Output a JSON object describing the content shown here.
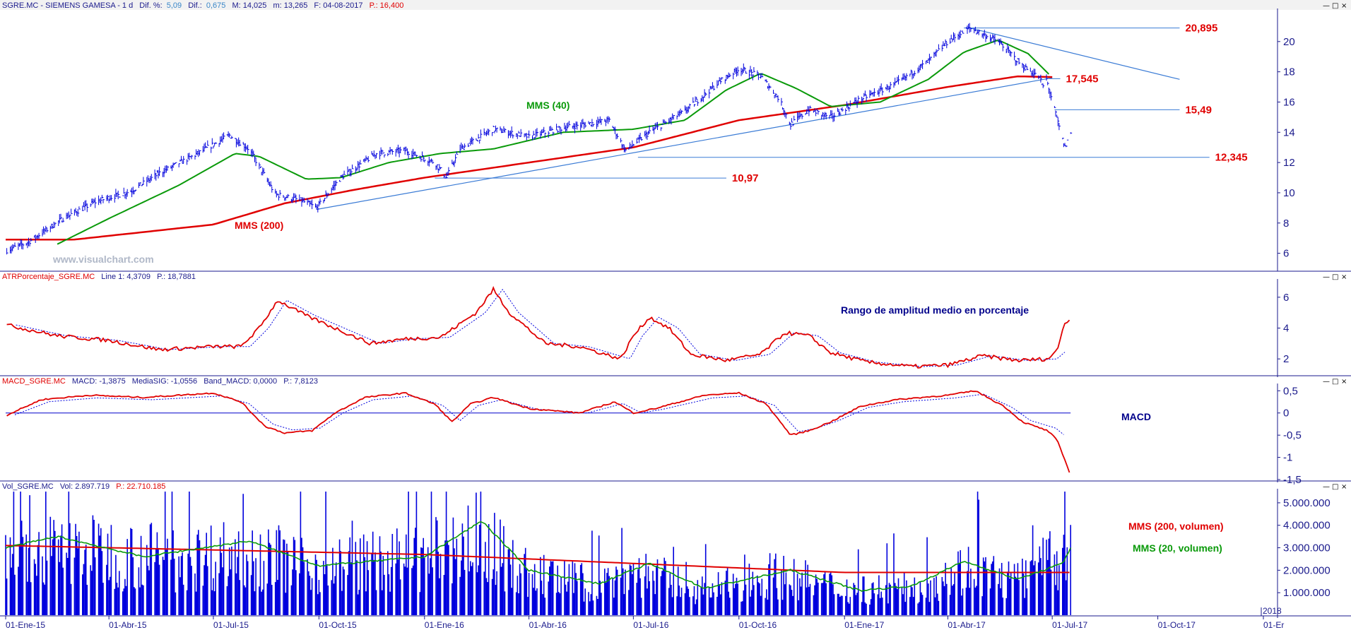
{
  "colors": {
    "price": "#0000dd",
    "mms40": "#0a9a0a",
    "mms200": "#e00000",
    "trend": "#3a7bd5",
    "header_text": "#1a1a8c",
    "header_value": "#3a87c8",
    "header_accent": "#e00000",
    "axis_text": "#1a1a8c",
    "volume_bar": "#0000dd",
    "annotation_blue": "#00008b",
    "watermark": "#b0b8c8"
  },
  "panels": {
    "price": {
      "header": {
        "title": "SGRE.MC - SIEMENS GAMESA - 1 d",
        "dif_pct_label": "Dif. %:",
        "dif_pct_value": "5,09",
        "dif_label": "Dif.:",
        "dif_value": "0,675",
        "max": "M: 14,025",
        "min": "m: 13,265",
        "date": "F: 04-08-2017",
        "price": "P.: 16,400"
      },
      "y_ticks": [
        "6",
        "8",
        "10",
        "12",
        "14",
        "16",
        "18",
        "20"
      ],
      "labels": {
        "mms40": "MMS (40)",
        "mms200": "MMS (200)",
        "watermark": "www.visualchart.com"
      },
      "levels": [
        "20,895",
        "17,545",
        "15,49",
        "12,345",
        "10,97"
      ]
    },
    "atr": {
      "header": {
        "name": "ATRPorcentaje_SGRE.MC",
        "line": "Line 1: 4,3709",
        "price": "P.: 18,7881"
      },
      "y_ticks": [
        "2",
        "4",
        "6"
      ],
      "annotation": "Rango de amplitud medio en porcentaje"
    },
    "macd": {
      "header": {
        "name": "MACD_SGRE.MC",
        "macd": "MACD: -1,3875",
        "signal": "MediaSIG: -1,0556",
        "band": "Band_MACD: 0,0000",
        "price": "P.: 7,8123"
      },
      "y_ticks": [
        "0,5",
        "0",
        "-0,5",
        "-1",
        "-1,5"
      ],
      "annotation": "MACD"
    },
    "volume": {
      "header": {
        "name": "Vol_SGRE.MC",
        "vol": "Vol: 2.897.719",
        "price": "P.: 22.710.185"
      },
      "y_ticks": [
        "1.000.000",
        "2.000.000",
        "3.000.000",
        "4.000.000",
        "5.000.000"
      ],
      "labels": {
        "mms200": "MMS (200, volumen)",
        "mms20": "MMS (20, volumen)"
      }
    }
  },
  "x_axis": {
    "ticks": [
      "01-Ene-15",
      "01-Abr-15",
      "01-Jul-15",
      "01-Oct-15",
      "01-Ene-16",
      "01-Abr-16",
      "01-Jul-16",
      "01-Oct-16",
      "01-Ene-17",
      "01-Abr-17",
      "01-Jul-17",
      "01-Oct-17",
      "01-Er"
    ],
    "year_marker": "2018"
  },
  "window_controls": {
    "minimize": "—",
    "maximize": "□",
    "close": "×"
  },
  "chart_data": {
    "type": "line",
    "title": "SGRE.MC - SIEMENS GAMESA - 1 d",
    "x_range": [
      "2015-01-01",
      "2018-01-01"
    ],
    "price_anchors": [
      [
        "2015-01-02",
        6.2
      ],
      [
        "2015-01-20",
        6.7
      ],
      [
        "2015-02-20",
        8.3
      ],
      [
        "2015-03-20",
        9.4
      ],
      [
        "2015-04-20",
        10.1
      ],
      [
        "2015-05-15",
        11.3
      ],
      [
        "2015-06-15",
        12.5
      ],
      [
        "2015-07-15",
        13.8
      ],
      [
        "2015-08-01",
        12.9
      ],
      [
        "2015-08-24",
        9.9
      ],
      [
        "2015-09-15",
        9.5
      ],
      [
        "2015-09-29",
        9.0
      ],
      [
        "2015-10-20",
        11.0
      ],
      [
        "2015-11-20",
        12.6
      ],
      [
        "2015-12-15",
        12.8
      ],
      [
        "2016-01-10",
        12.0
      ],
      [
        "2016-01-20",
        11.0
      ],
      [
        "2016-02-01",
        12.9
      ],
      [
        "2016-03-01",
        14.2
      ],
      [
        "2016-04-01",
        13.7
      ],
      [
        "2016-05-01",
        14.3
      ],
      [
        "2016-06-10",
        14.8
      ],
      [
        "2016-06-24",
        12.8
      ],
      [
        "2016-07-15",
        14.0
      ],
      [
        "2016-08-15",
        15.4
      ],
      [
        "2016-09-15",
        17.4
      ],
      [
        "2016-10-01",
        18.2
      ],
      [
        "2016-10-20",
        17.7
      ],
      [
        "2016-11-05",
        16.2
      ],
      [
        "2016-11-15",
        14.5
      ],
      [
        "2016-12-01",
        15.5
      ],
      [
        "2016-12-20",
        15.0
      ],
      [
        "2017-01-15",
        16.2
      ],
      [
        "2017-02-15",
        17.2
      ],
      [
        "2017-03-15",
        18.7
      ],
      [
        "2017-04-01",
        20.0
      ],
      [
        "2017-04-20",
        20.895
      ],
      [
        "2017-05-15",
        20.0
      ],
      [
        "2017-06-05",
        18.4
      ],
      [
        "2017-06-20",
        17.6
      ],
      [
        "2017-06-23",
        17.0
      ],
      [
        "2017-06-26",
        17.5
      ],
      [
        "2017-07-03",
        15.49
      ],
      [
        "2017-07-10",
        13.5
      ],
      [
        "2017-07-12",
        13.0
      ],
      [
        "2017-07-17",
        14.0
      ]
    ],
    "mms40_anchors": [
      [
        "2015-02-15",
        6.6
      ],
      [
        "2015-04-01",
        8.3
      ],
      [
        "2015-06-01",
        10.5
      ],
      [
        "2015-07-20",
        12.6
      ],
      [
        "2015-08-10",
        12.4
      ],
      [
        "2015-09-20",
        10.9
      ],
      [
        "2015-10-20",
        11.0
      ],
      [
        "2015-12-01",
        12.0
      ],
      [
        "2016-01-15",
        12.6
      ],
      [
        "2016-03-01",
        12.9
      ],
      [
        "2016-05-01",
        14.0
      ],
      [
        "2016-07-01",
        14.2
      ],
      [
        "2016-08-15",
        14.8
      ],
      [
        "2016-09-20",
        16.8
      ],
      [
        "2016-10-20",
        17.9
      ],
      [
        "2016-11-20",
        16.9
      ],
      [
        "2016-12-20",
        15.7
      ],
      [
        "2017-02-01",
        16.0
      ],
      [
        "2017-03-15",
        17.5
      ],
      [
        "2017-04-15",
        19.3
      ],
      [
        "2017-05-15",
        20.1
      ],
      [
        "2017-06-10",
        19.2
      ],
      [
        "2017-06-30",
        17.7
      ]
    ],
    "mms200_anchors": [
      [
        "2015-01-01",
        6.9
      ],
      [
        "2015-03-01",
        6.9
      ],
      [
        "2015-07-01",
        7.9
      ],
      [
        "2015-09-01",
        9.3
      ],
      [
        "2015-11-01",
        10.2
      ],
      [
        "2016-01-01",
        11.0
      ],
      [
        "2016-04-01",
        12.0
      ],
      [
        "2016-07-01",
        13.0
      ],
      [
        "2016-10-01",
        14.8
      ],
      [
        "2017-01-01",
        15.8
      ],
      [
        "2017-04-01",
        17.0
      ],
      [
        "2017-06-01",
        17.7
      ],
      [
        "2017-07-01",
        17.65
      ]
    ],
    "price_ylim": [
      5,
      22
    ],
    "levels": [
      {
        "label": "20,895",
        "value": 20.895,
        "from": "2017-04-15",
        "to": "2017-10-20"
      },
      {
        "label": "17,545",
        "value": 17.545,
        "from": "2017-06-27",
        "to": "2017-07-08"
      },
      {
        "label": "15,49",
        "value": 15.49,
        "from": "2017-07-03",
        "to": "2017-10-20"
      },
      {
        "label": "12,345",
        "value": 12.345,
        "from": "2016-07-05",
        "to": "2017-11-15"
      },
      {
        "label": "10,97",
        "value": 10.97,
        "from": "2016-01-10",
        "to": "2016-09-20"
      }
    ],
    "trend_lines": [
      [
        [
          "2015-09-29",
          8.9
        ],
        [
          "2017-07-01",
          17.6
        ]
      ],
      [
        [
          "2017-04-20",
          20.9
        ],
        [
          "2017-10-20",
          17.5
        ]
      ]
    ],
    "atr_anchors": [
      [
        "2015-01-02",
        4.2
      ],
      [
        "2015-02-15",
        3.5
      ],
      [
        "2015-04-01",
        3.2
      ],
      [
        "2015-05-15",
        2.6
      ],
      [
        "2015-07-01",
        2.8
      ],
      [
        "2015-07-25",
        2.8
      ],
      [
        "2015-08-10",
        4.0
      ],
      [
        "2015-08-26",
        5.8
      ],
      [
        "2015-09-20",
        4.8
      ],
      [
        "2015-10-15",
        4.0
      ],
      [
        "2015-11-15",
        3.0
      ],
      [
        "2015-12-15",
        3.3
      ],
      [
        "2016-01-15",
        3.4
      ],
      [
        "2016-02-15",
        5.0
      ],
      [
        "2016-03-01",
        6.5
      ],
      [
        "2016-03-15",
        5.0
      ],
      [
        "2016-04-15",
        3.0
      ],
      [
        "2016-05-15",
        2.8
      ],
      [
        "2016-06-20",
        2.0
      ],
      [
        "2016-07-01",
        3.5
      ],
      [
        "2016-07-15",
        4.7
      ],
      [
        "2016-08-01",
        4.0
      ],
      [
        "2016-08-20",
        2.3
      ],
      [
        "2016-09-20",
        1.9
      ],
      [
        "2016-10-20",
        2.3
      ],
      [
        "2016-11-10",
        3.7
      ],
      [
        "2016-12-01",
        3.5
      ],
      [
        "2016-12-20",
        2.4
      ],
      [
        "2017-01-20",
        1.8
      ],
      [
        "2017-03-01",
        1.5
      ],
      [
        "2017-04-01",
        1.6
      ],
      [
        "2017-05-01",
        2.2
      ],
      [
        "2017-06-01",
        1.9
      ],
      [
        "2017-06-27",
        2.0
      ],
      [
        "2017-07-05",
        2.5
      ],
      [
        "2017-07-12",
        4.4
      ],
      [
        "2017-07-17",
        4.5
      ]
    ],
    "atr_ylim": [
      1,
      7
    ],
    "macd_anchors": [
      [
        "2015-01-02",
        -0.05
      ],
      [
        "2015-02-01",
        0.3
      ],
      [
        "2015-03-15",
        0.4
      ],
      [
        "2015-05-01",
        0.35
      ],
      [
        "2015-07-01",
        0.45
      ],
      [
        "2015-07-25",
        0.25
      ],
      [
        "2015-08-15",
        -0.3
      ],
      [
        "2015-09-01",
        -0.45
      ],
      [
        "2015-09-25",
        -0.4
      ],
      [
        "2015-10-15",
        0.0
      ],
      [
        "2015-11-10",
        0.35
      ],
      [
        "2015-12-15",
        0.45
      ],
      [
        "2016-01-10",
        0.2
      ],
      [
        "2016-01-25",
        -0.2
      ],
      [
        "2016-02-10",
        0.2
      ],
      [
        "2016-03-01",
        0.35
      ],
      [
        "2016-04-01",
        0.1
      ],
      [
        "2016-05-15",
        0.0
      ],
      [
        "2016-06-15",
        0.25
      ],
      [
        "2016-07-01",
        0.0
      ],
      [
        "2016-07-20",
        0.1
      ],
      [
        "2016-09-01",
        0.4
      ],
      [
        "2016-10-01",
        0.45
      ],
      [
        "2016-10-25",
        0.2
      ],
      [
        "2016-11-15",
        -0.5
      ],
      [
        "2016-12-01",
        -0.4
      ],
      [
        "2016-12-20",
        -0.2
      ],
      [
        "2017-01-15",
        0.15
      ],
      [
        "2017-02-15",
        0.3
      ],
      [
        "2017-04-01",
        0.4
      ],
      [
        "2017-04-25",
        0.5
      ],
      [
        "2017-05-20",
        0.15
      ],
      [
        "2017-06-05",
        -0.2
      ],
      [
        "2017-06-27",
        -0.4
      ],
      [
        "2017-07-05",
        -0.6
      ],
      [
        "2017-07-17",
        -1.39
      ]
    ],
    "macd_ylim": [
      -1.5,
      0.6
    ],
    "volume_profile": [
      [
        "2015-01-01",
        3000000
      ],
      [
        "2015-03-01",
        3200000
      ],
      [
        "2015-06-01",
        2800000
      ],
      [
        "2015-08-01",
        3100000
      ],
      [
        "2015-10-01",
        2400000
      ],
      [
        "2016-01-01",
        2800000
      ],
      [
        "2016-02-15",
        3800000
      ],
      [
        "2016-04-01",
        2000000
      ],
      [
        "2016-06-01",
        1500000
      ],
      [
        "2016-07-01",
        2200000
      ],
      [
        "2016-09-01",
        1200000
      ],
      [
        "2016-11-01",
        2000000
      ],
      [
        "2017-01-01",
        1300000
      ],
      [
        "2017-03-01",
        1300000
      ],
      [
        "2017-04-15",
        2300000
      ],
      [
        "2017-06-01",
        1700000
      ],
      [
        "2017-07-01",
        2700000
      ],
      [
        "2017-07-17",
        3000000
      ]
    ],
    "vol_mms200": [
      [
        "2015-01-01",
        3100000
      ],
      [
        "2016-01-01",
        2700000
      ],
      [
        "2017-01-01",
        1900000
      ],
      [
        "2017-07-17",
        1900000
      ]
    ],
    "vol_mms20": [
      [
        "2015-01-01",
        3000000
      ],
      [
        "2015-02-15",
        3500000
      ],
      [
        "2015-05-01",
        2600000
      ],
      [
        "2015-08-01",
        3300000
      ],
      [
        "2015-10-01",
        2200000
      ],
      [
        "2016-01-01",
        2600000
      ],
      [
        "2016-02-20",
        4200000
      ],
      [
        "2016-04-01",
        2000000
      ],
      [
        "2016-06-01",
        1400000
      ],
      [
        "2016-07-15",
        2300000
      ],
      [
        "2016-09-01",
        1200000
      ],
      [
        "2016-11-15",
        2000000
      ],
      [
        "2017-01-15",
        1100000
      ],
      [
        "2017-03-01",
        1300000
      ],
      [
        "2017-04-15",
        2400000
      ],
      [
        "2017-06-01",
        1600000
      ],
      [
        "2017-07-10",
        2300000
      ],
      [
        "2017-07-17",
        3000000
      ]
    ],
    "volume_ylim": [
      0,
      5500000
    ]
  }
}
